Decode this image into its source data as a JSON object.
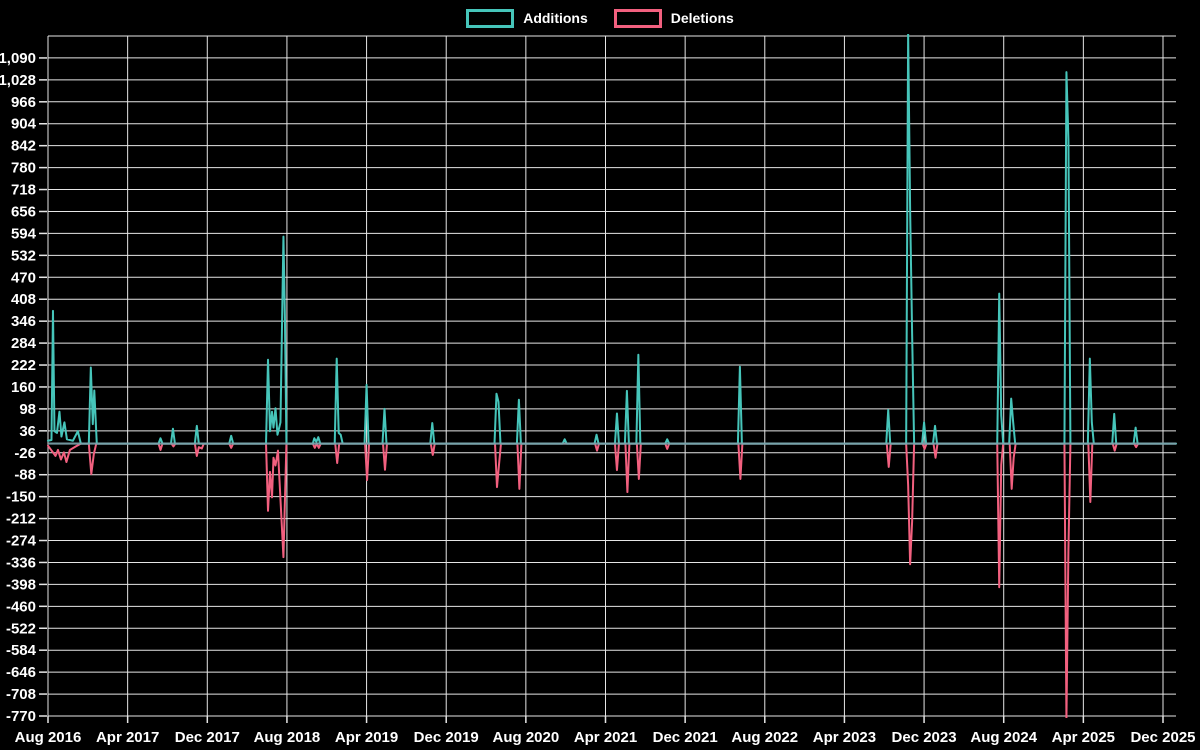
{
  "page": {
    "background": "#000000"
  },
  "legend": {
    "items": [
      {
        "label": "Additions",
        "color": "#46c5ba"
      },
      {
        "label": "Deletions",
        "color": "#f2607f"
      }
    ]
  },
  "chart_data": {
    "type": "line",
    "title": "",
    "xlabel": "",
    "ylabel": "",
    "legend_position": "top",
    "grid": true,
    "colors": {
      "background": "#000000",
      "gridline": "#e6e6e6",
      "tick_text": "#ffffff",
      "baseline": "#7ba1a9",
      "additions": "#46c5ba",
      "deletions": "#f2607f"
    },
    "x_axis": {
      "tick_labels": [
        "Aug 2016",
        "Apr 2017",
        "Dec 2017",
        "Aug 2018",
        "Apr 2019",
        "Dec 2019",
        "Aug 2020",
        "Apr 2021",
        "Dec 2021",
        "Aug 2022",
        "Apr 2023",
        "Dec 2023",
        "Aug 2024",
        "Apr 2025",
        "Dec 2025"
      ],
      "months_between_ticks": 8,
      "total_months": 112
    },
    "y_axis": {
      "tick_labels": [
        "1,090",
        "1,028",
        "966",
        "904",
        "842",
        "780",
        "718",
        "656",
        "594",
        "532",
        "470",
        "408",
        "346",
        "284",
        "222",
        "160",
        "98",
        "36",
        "-26",
        "-88",
        "-150",
        "-212",
        "-274",
        "-336",
        "-398",
        "-460",
        "-522",
        "-584",
        "-646",
        "-708",
        "-770"
      ],
      "tick_step": 62,
      "top_value": 1152,
      "bottom_value": -770
    },
    "series": [
      {
        "name": "Additions",
        "color": "#46c5ba",
        "points_note": "x = months after Aug 2016, y = lines added per week (0 between listed events; tall spikes clipped at plot edge)",
        "points": [
          [
            0,
            8
          ],
          [
            0.35,
            10
          ],
          [
            0.5,
            375
          ],
          [
            0.65,
            35
          ],
          [
            0.9,
            30
          ],
          [
            1.15,
            90
          ],
          [
            1.35,
            20
          ],
          [
            1.65,
            60
          ],
          [
            1.9,
            12
          ],
          [
            2.5,
            8
          ],
          [
            3.0,
            35
          ],
          [
            3.3,
            0
          ],
          [
            4.1,
            0
          ],
          [
            4.3,
            215
          ],
          [
            4.5,
            55
          ],
          [
            4.65,
            150
          ],
          [
            4.9,
            0
          ],
          [
            11.1,
            0
          ],
          [
            11.3,
            15
          ],
          [
            11.5,
            0
          ],
          [
            12.35,
            0
          ],
          [
            12.55,
            42
          ],
          [
            12.75,
            0
          ],
          [
            14.75,
            0
          ],
          [
            14.95,
            50
          ],
          [
            15.15,
            0
          ],
          [
            18.2,
            0
          ],
          [
            18.4,
            22
          ],
          [
            18.6,
            0
          ],
          [
            21.9,
            0
          ],
          [
            22.1,
            237
          ],
          [
            22.3,
            35
          ],
          [
            22.5,
            90
          ],
          [
            22.65,
            45
          ],
          [
            22.85,
            100
          ],
          [
            23.05,
            25
          ],
          [
            23.35,
            60
          ],
          [
            23.65,
            585
          ],
          [
            23.8,
            350
          ],
          [
            23.95,
            0
          ],
          [
            26.6,
            0
          ],
          [
            26.75,
            15
          ],
          [
            26.95,
            5
          ],
          [
            27.15,
            18
          ],
          [
            27.35,
            0
          ],
          [
            28.8,
            0
          ],
          [
            29.0,
            240
          ],
          [
            29.2,
            30
          ],
          [
            29.4,
            25
          ],
          [
            29.6,
            0
          ],
          [
            31.8,
            0
          ],
          [
            32.0,
            166
          ],
          [
            32.2,
            0
          ],
          [
            33.6,
            0
          ],
          [
            33.8,
            98
          ],
          [
            34.0,
            0
          ],
          [
            38.4,
            0
          ],
          [
            38.6,
            58
          ],
          [
            38.8,
            0
          ],
          [
            44.85,
            0
          ],
          [
            45.05,
            141
          ],
          [
            45.25,
            118
          ],
          [
            45.45,
            0
          ],
          [
            47.1,
            0
          ],
          [
            47.3,
            124
          ],
          [
            47.5,
            0
          ],
          [
            51.7,
            0
          ],
          [
            51.9,
            12
          ],
          [
            52.1,
            0
          ],
          [
            54.9,
            0
          ],
          [
            55.1,
            25
          ],
          [
            55.3,
            0
          ],
          [
            56.95,
            0
          ],
          [
            57.15,
            85
          ],
          [
            57.35,
            0
          ],
          [
            57.95,
            0
          ],
          [
            58.15,
            149
          ],
          [
            58.35,
            0
          ],
          [
            59.1,
            0
          ],
          [
            59.3,
            251
          ],
          [
            59.5,
            0
          ],
          [
            62.0,
            0
          ],
          [
            62.2,
            12
          ],
          [
            62.4,
            0
          ],
          [
            69.3,
            0
          ],
          [
            69.5,
            217
          ],
          [
            69.7,
            0
          ],
          [
            84.2,
            0
          ],
          [
            84.4,
            95
          ],
          [
            84.6,
            0
          ],
          [
            86.2,
            0
          ],
          [
            86.4,
            1160
          ],
          [
            86.6,
            660
          ],
          [
            86.8,
            310
          ],
          [
            87.0,
            0
          ],
          [
            87.8,
            0
          ],
          [
            88.0,
            60
          ],
          [
            88.2,
            0
          ],
          [
            88.9,
            0
          ],
          [
            89.1,
            50
          ],
          [
            89.3,
            0
          ],
          [
            95.35,
            0
          ],
          [
            95.55,
            424
          ],
          [
            95.75,
            80
          ],
          [
            95.95,
            0
          ],
          [
            96.55,
            0
          ],
          [
            96.75,
            127
          ],
          [
            96.95,
            60
          ],
          [
            97.15,
            0
          ],
          [
            102.1,
            0
          ],
          [
            102.3,
            1050
          ],
          [
            102.5,
            860
          ],
          [
            102.7,
            0
          ],
          [
            104.45,
            0
          ],
          [
            104.65,
            240
          ],
          [
            104.85,
            60
          ],
          [
            105.05,
            0
          ],
          [
            106.9,
            0
          ],
          [
            107.1,
            84
          ],
          [
            107.3,
            0
          ],
          [
            109.05,
            0
          ],
          [
            109.25,
            45
          ],
          [
            109.45,
            0
          ],
          [
            113.3,
            0
          ]
        ]
      },
      {
        "name": "Deletions",
        "color": "#f2607f",
        "points_note": "x = months after Aug 2016, y = lines deleted per week (negative; deepest spike clipped at plot bottom)",
        "points": [
          [
            0,
            -6
          ],
          [
            0.5,
            -25
          ],
          [
            0.75,
            -35
          ],
          [
            1.0,
            -18
          ],
          [
            1.3,
            -45
          ],
          [
            1.6,
            -25
          ],
          [
            1.85,
            -52
          ],
          [
            2.2,
            -18
          ],
          [
            2.8,
            -8
          ],
          [
            3.3,
            0
          ],
          [
            4.1,
            0
          ],
          [
            4.35,
            -86
          ],
          [
            4.6,
            -30
          ],
          [
            4.85,
            0
          ],
          [
            11.1,
            0
          ],
          [
            11.3,
            -18
          ],
          [
            11.5,
            0
          ],
          [
            12.4,
            0
          ],
          [
            12.6,
            -8
          ],
          [
            12.8,
            0
          ],
          [
            14.75,
            0
          ],
          [
            14.95,
            -35
          ],
          [
            15.15,
            -10
          ],
          [
            15.45,
            -14
          ],
          [
            15.65,
            0
          ],
          [
            18.2,
            0
          ],
          [
            18.4,
            -12
          ],
          [
            18.6,
            0
          ],
          [
            21.9,
            0
          ],
          [
            22.1,
            -190
          ],
          [
            22.3,
            -80
          ],
          [
            22.5,
            -152
          ],
          [
            22.65,
            -40
          ],
          [
            22.85,
            -62
          ],
          [
            23.1,
            -20
          ],
          [
            23.65,
            -321
          ],
          [
            23.95,
            0
          ],
          [
            26.6,
            0
          ],
          [
            26.8,
            -12
          ],
          [
            27.0,
            0
          ],
          [
            27.2,
            -12
          ],
          [
            27.4,
            0
          ],
          [
            28.85,
            0
          ],
          [
            29.05,
            -55
          ],
          [
            29.25,
            0
          ],
          [
            31.85,
            0
          ],
          [
            32.05,
            -103
          ],
          [
            32.25,
            0
          ],
          [
            33.65,
            0
          ],
          [
            33.85,
            -74
          ],
          [
            34.05,
            0
          ],
          [
            38.45,
            0
          ],
          [
            38.65,
            -32
          ],
          [
            38.85,
            0
          ],
          [
            44.9,
            0
          ],
          [
            45.1,
            -123
          ],
          [
            45.3,
            -60
          ],
          [
            45.5,
            0
          ],
          [
            47.15,
            0
          ],
          [
            47.35,
            -128
          ],
          [
            47.55,
            0
          ],
          [
            54.95,
            0
          ],
          [
            55.15,
            -20
          ],
          [
            55.35,
            0
          ],
          [
            56.95,
            0
          ],
          [
            57.15,
            -75
          ],
          [
            57.35,
            0
          ],
          [
            58.0,
            0
          ],
          [
            58.2,
            -137
          ],
          [
            58.4,
            0
          ],
          [
            59.15,
            0
          ],
          [
            59.35,
            -100
          ],
          [
            59.55,
            0
          ],
          [
            62.0,
            0
          ],
          [
            62.2,
            -15
          ],
          [
            62.4,
            0
          ],
          [
            69.35,
            0
          ],
          [
            69.55,
            -100
          ],
          [
            69.75,
            0
          ],
          [
            84.25,
            0
          ],
          [
            84.45,
            -66
          ],
          [
            84.65,
            0
          ],
          [
            86.2,
            0
          ],
          [
            86.4,
            -117
          ],
          [
            86.6,
            -341
          ],
          [
            86.8,
            -220
          ],
          [
            87.0,
            0
          ],
          [
            87.85,
            0
          ],
          [
            88.05,
            -15
          ],
          [
            88.25,
            0
          ],
          [
            88.95,
            0
          ],
          [
            89.15,
            -40
          ],
          [
            89.35,
            0
          ],
          [
            95.35,
            0
          ],
          [
            95.55,
            -406
          ],
          [
            95.75,
            -60
          ],
          [
            95.95,
            0
          ],
          [
            96.6,
            0
          ],
          [
            96.8,
            -128
          ],
          [
            97.0,
            -40
          ],
          [
            97.2,
            0
          ],
          [
            102.1,
            0
          ],
          [
            102.3,
            -780
          ],
          [
            102.5,
            -300
          ],
          [
            102.7,
            0
          ],
          [
            104.5,
            0
          ],
          [
            104.7,
            -165
          ],
          [
            104.9,
            0
          ],
          [
            106.95,
            0
          ],
          [
            107.15,
            -20
          ],
          [
            107.35,
            0
          ],
          [
            109.1,
            0
          ],
          [
            109.3,
            -10
          ],
          [
            109.5,
            0
          ],
          [
            113.3,
            0
          ]
        ]
      }
    ]
  }
}
